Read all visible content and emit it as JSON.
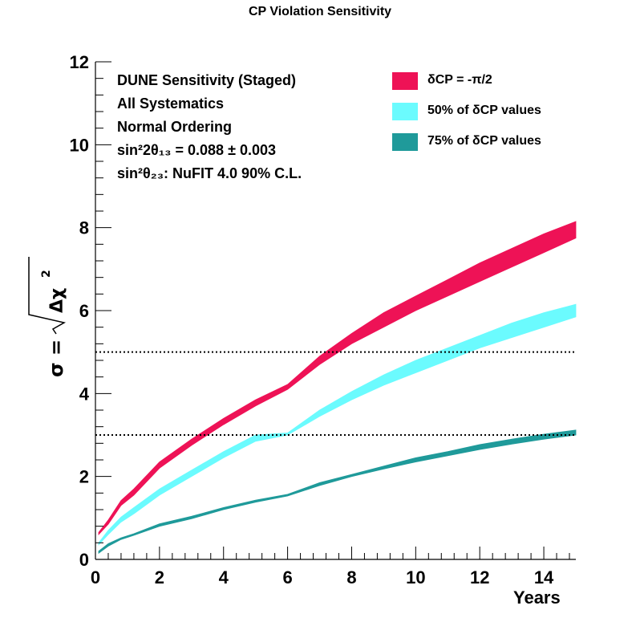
{
  "chart_data": {
    "type": "area",
    "title": "CP Violation Sensitivity",
    "xlabel": "Years",
    "ylabel": "σ = √Δχ²",
    "xlim": [
      0,
      15
    ],
    "ylim": [
      0,
      12
    ],
    "xticks": [
      "0",
      "2",
      "4",
      "6",
      "8",
      "10",
      "12",
      "14"
    ],
    "yticks": [
      "0",
      "2",
      "4",
      "6",
      "8",
      "10",
      "12"
    ],
    "reference_lines": [
      3,
      5
    ],
    "info_lines": [
      "DUNE Sensitivity (Staged)",
      "All Systematics",
      "Normal Ordering",
      "sin²2θ₁₃ = 0.088 ± 0.003",
      "sin²θ₂₃: NuFIT 4.0 90% C.L."
    ],
    "legend_position": "top-right",
    "x": [
      0.1,
      0.4,
      0.8,
      1.2,
      2,
      3,
      4,
      5,
      6,
      7,
      8,
      9,
      10,
      11,
      12,
      13,
      14,
      15
    ],
    "series": [
      {
        "name": "δCP = -π/2",
        "color": "#ee1256",
        "lower": [
          0.6,
          0.85,
          1.3,
          1.55,
          2.2,
          2.75,
          3.25,
          3.7,
          4.1,
          4.7,
          5.2,
          5.6,
          6.0,
          6.35,
          6.7,
          7.05,
          7.4,
          7.75
        ],
        "upper": [
          0.65,
          0.95,
          1.42,
          1.7,
          2.35,
          2.9,
          3.4,
          3.85,
          4.22,
          4.9,
          5.45,
          5.95,
          6.35,
          6.75,
          7.15,
          7.5,
          7.85,
          8.15
        ]
      },
      {
        "name": "50% of δCP values",
        "color": "#6bfbfe",
        "lower": [
          0.35,
          0.6,
          0.9,
          1.1,
          1.55,
          2.0,
          2.45,
          2.85,
          3.0,
          3.45,
          3.85,
          4.2,
          4.5,
          4.8,
          5.1,
          5.35,
          5.6,
          5.85
        ],
        "upper": [
          0.4,
          0.7,
          1.02,
          1.25,
          1.7,
          2.15,
          2.6,
          3.0,
          3.05,
          3.6,
          4.05,
          4.45,
          4.8,
          5.1,
          5.4,
          5.7,
          5.95,
          6.15
        ]
      },
      {
        "name": "75% of δCP values",
        "color": "#1f9a9a",
        "lower": [
          0.15,
          0.32,
          0.48,
          0.58,
          0.8,
          0.98,
          1.2,
          1.38,
          1.53,
          1.78,
          2.0,
          2.18,
          2.35,
          2.5,
          2.65,
          2.78,
          2.9,
          3.0
        ],
        "upper": [
          0.2,
          0.38,
          0.52,
          0.62,
          0.86,
          1.04,
          1.25,
          1.43,
          1.57,
          1.85,
          2.05,
          2.25,
          2.45,
          2.6,
          2.77,
          2.9,
          3.02,
          3.12
        ]
      }
    ]
  }
}
